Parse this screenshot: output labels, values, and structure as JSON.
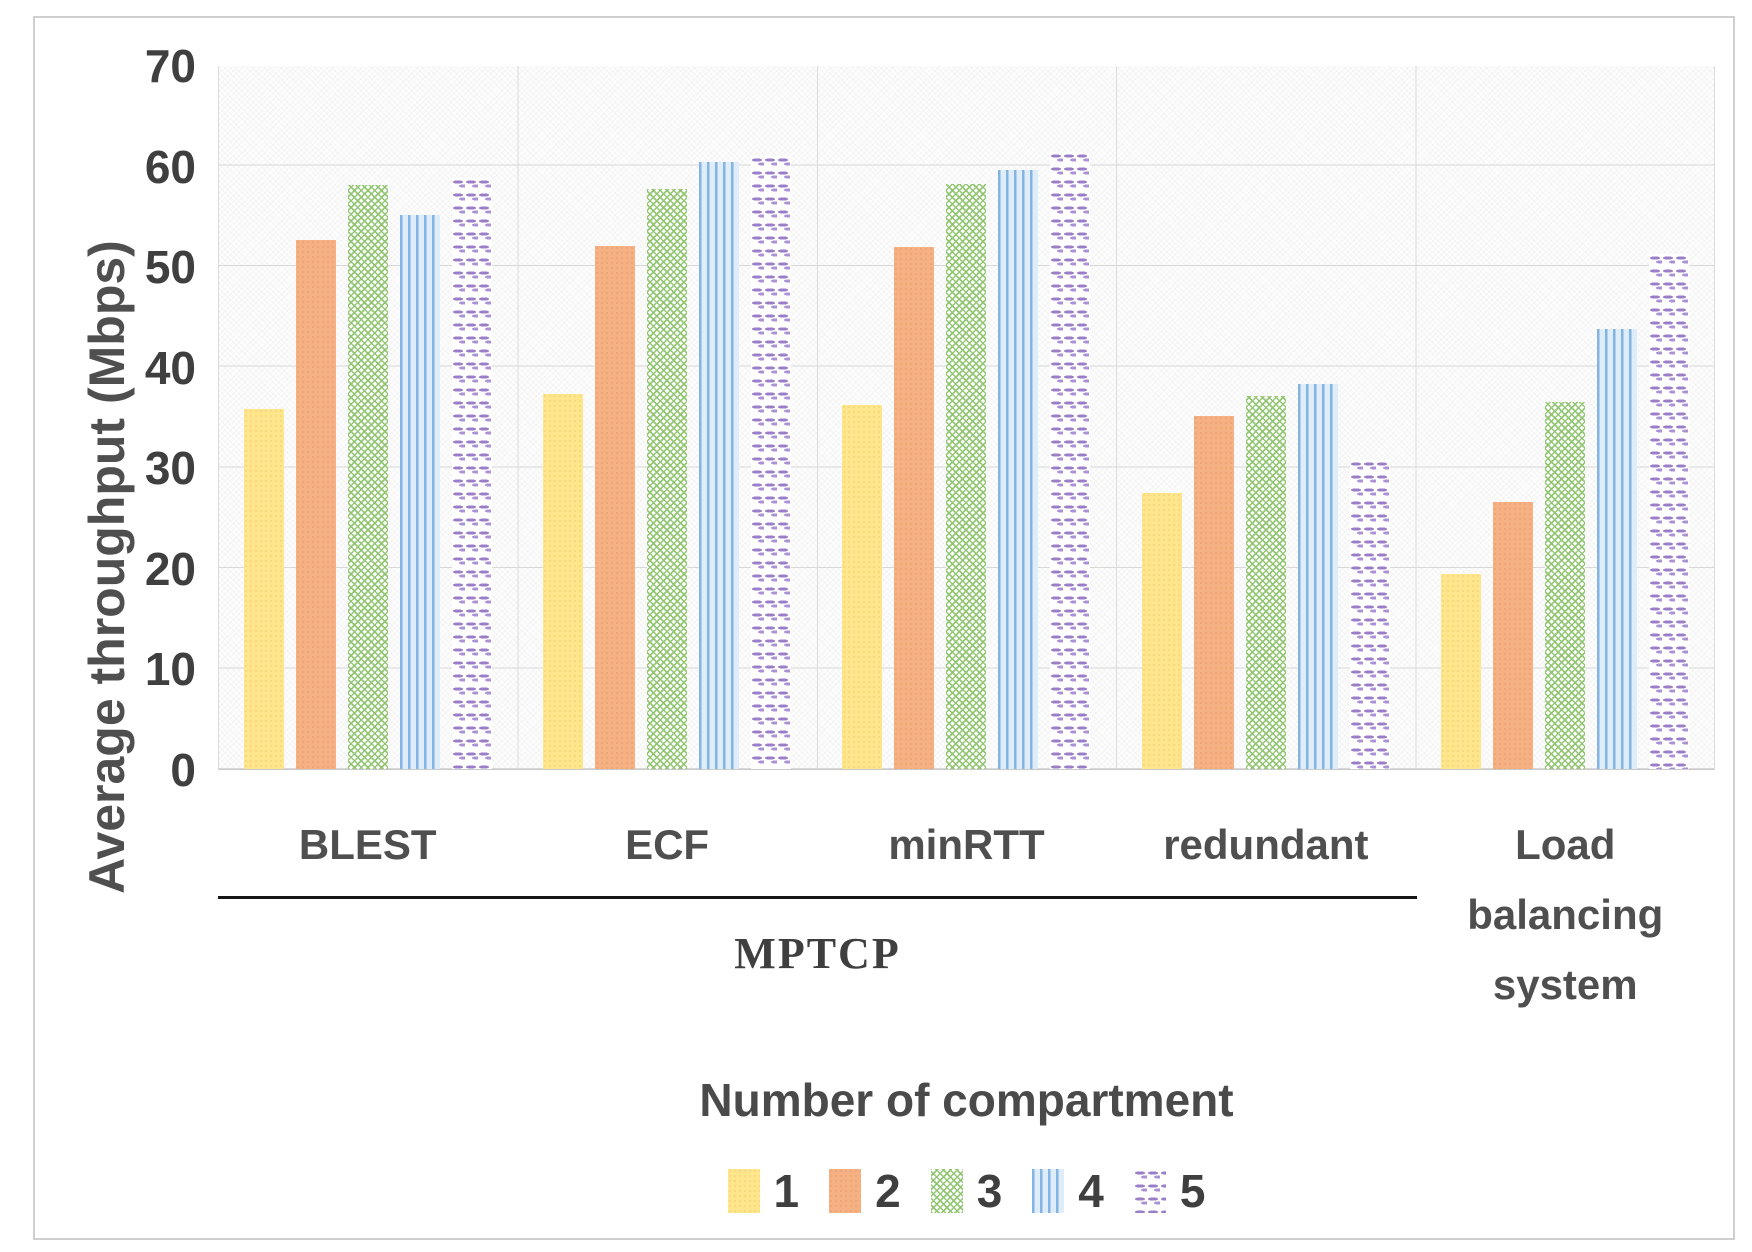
{
  "figure": {
    "kind": "grouped-bar-chart-figure"
  },
  "chart_data": {
    "type": "bar",
    "title": "",
    "ylabel": "Average throughput (Mbps)",
    "xlabel": "Number of compartment",
    "ylim": [
      0,
      70
    ],
    "yticks": [
      70,
      60,
      50,
      40,
      30,
      20,
      10,
      0
    ],
    "grid": true,
    "legend_position": "bottom",
    "categories": [
      "BLEST",
      "ECF",
      "minRTT",
      "redundant",
      "Load balancing system"
    ],
    "category_axis_group": {
      "label": "MPTCP",
      "spans_categories": [
        "BLEST",
        "ECF",
        "minRTT",
        "redundant"
      ]
    },
    "series": [
      {
        "name": "1",
        "pattern": "solid-yellow-dotted",
        "color": "#ffe58c",
        "values": [
          35.8,
          37.3,
          36.2,
          27.5,
          19.4
        ]
      },
      {
        "name": "2",
        "pattern": "solid-orange-dotted",
        "color": "#f5b183",
        "values": [
          52.7,
          52.1,
          52.0,
          35.2,
          26.6
        ]
      },
      {
        "name": "3",
        "pattern": "green-crosshatch",
        "color": "#8fc56f",
        "values": [
          58.2,
          57.8,
          58.3,
          37.1,
          36.5
        ]
      },
      {
        "name": "4",
        "pattern": "blue-vertical-stripes",
        "color": "#83b4e2",
        "values": [
          55.2,
          60.4,
          59.6,
          38.3,
          43.8
        ]
      },
      {
        "name": "5",
        "pattern": "purple-wavy-lines",
        "color": "#9b7ec8",
        "values": [
          58.8,
          61.0,
          61.4,
          30.8,
          51.3
        ]
      }
    ]
  }
}
